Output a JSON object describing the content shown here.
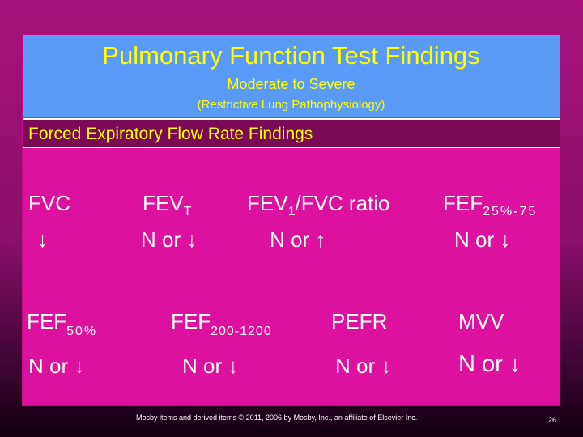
{
  "header": {
    "title": "Pulmonary Function Test Findings",
    "subtitle": "Moderate to Severe",
    "subtitle2": "(Restrictive Lung Pathophysiology)"
  },
  "section": {
    "label": "Forced Expiratory Flow Rate Findings"
  },
  "row1": [
    {
      "name": "FVC",
      "sub": "",
      "value": "↓"
    },
    {
      "name": "FEV",
      "sub": "T",
      "value": "N or ↓"
    },
    {
      "name": "FEV",
      "sub": "1",
      "suffix": "/FVC ratio",
      "value": "N or ↑"
    },
    {
      "name": "FEF",
      "sub": "25%-75",
      "value": "N or ↓"
    }
  ],
  "row2": [
    {
      "name": "FEF",
      "sub": "50%",
      "value": "N or ↓"
    },
    {
      "name": "FEF",
      "sub": "200-1200",
      "value": "N or ↓"
    },
    {
      "name": "PEFR",
      "sub": "",
      "value": "N or ↓"
    },
    {
      "name": "MVV",
      "sub": "",
      "value": "N or ↓"
    }
  ],
  "footer": {
    "credit": "Mosby items and derived items © 2011, 2006 by Mosby, Inc., an affiliate of Elsevier Inc.",
    "page_number": "26"
  }
}
